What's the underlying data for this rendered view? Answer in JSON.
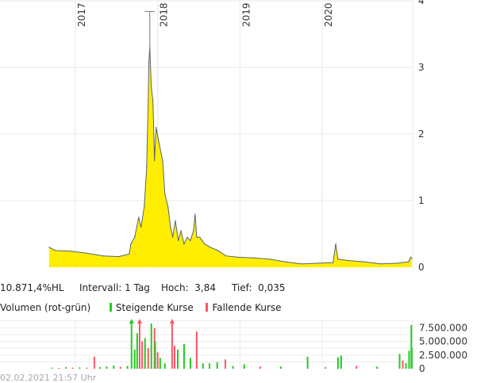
{
  "chart_data": [
    {
      "type": "area",
      "series_color": "#ffee00",
      "line_color": "#5a6470",
      "ylim": [
        0,
        4
      ],
      "y_ticks": [
        "0",
        "1",
        "2",
        "3",
        "4"
      ],
      "x_range": [
        "2016-09-01",
        "2021-02-02"
      ],
      "x_ticks": [
        "2017",
        "2018",
        "2019",
        "2020"
      ],
      "grid": true,
      "high_marker": {
        "date": "2017-11-27",
        "value": 3.84
      },
      "points": [
        [
          "2016-09-06",
          0.3
        ],
        [
          "2016-10-04",
          0.25
        ],
        [
          "2016-12-13",
          0.24
        ],
        [
          "2017-02-22",
          0.21
        ],
        [
          "2017-05-04",
          0.17
        ],
        [
          "2017-07-13",
          0.16
        ],
        [
          "2017-08-28",
          0.2
        ],
        [
          "2017-09-04",
          0.35
        ],
        [
          "2017-09-21",
          0.45
        ],
        [
          "2017-10-09",
          0.75
        ],
        [
          "2017-10-19",
          0.6
        ],
        [
          "2017-11-02",
          0.9
        ],
        [
          "2017-11-13",
          1.5
        ],
        [
          "2017-11-20",
          2.5
        ],
        [
          "2017-11-23",
          3.1
        ],
        [
          "2017-11-27",
          3.3
        ],
        [
          "2017-12-04",
          2.7
        ],
        [
          "2017-12-11",
          2.5
        ],
        [
          "2017-12-18",
          1.6
        ],
        [
          "2017-12-25",
          2.1
        ],
        [
          "2018-01-05",
          1.9
        ],
        [
          "2018-01-23",
          1.6
        ],
        [
          "2018-02-02",
          1.1
        ],
        [
          "2018-02-16",
          0.9
        ],
        [
          "2018-02-27",
          0.6
        ],
        [
          "2018-03-09",
          0.45
        ],
        [
          "2018-03-20",
          0.7
        ],
        [
          "2018-04-03",
          0.4
        ],
        [
          "2018-04-14",
          0.55
        ],
        [
          "2018-04-28",
          0.35
        ],
        [
          "2018-05-12",
          0.45
        ],
        [
          "2018-05-26",
          0.4
        ],
        [
          "2018-06-09",
          0.55
        ],
        [
          "2018-06-16",
          0.8
        ],
        [
          "2018-06-23",
          0.45
        ],
        [
          "2018-07-07",
          0.45
        ],
        [
          "2018-07-28",
          0.35
        ],
        [
          "2018-08-22",
          0.3
        ],
        [
          "2018-09-26",
          0.25
        ],
        [
          "2018-10-31",
          0.17
        ],
        [
          "2018-12-23",
          0.15
        ],
        [
          "2019-03-04",
          0.14
        ],
        [
          "2019-05-14",
          0.12
        ],
        [
          "2019-07-22",
          0.08
        ],
        [
          "2019-09-30",
          0.05
        ],
        [
          "2019-12-10",
          0.06
        ],
        [
          "2020-02-18",
          0.07
        ],
        [
          "2020-03-01",
          0.35
        ],
        [
          "2020-03-11",
          0.12
        ],
        [
          "2020-04-29",
          0.1
        ],
        [
          "2020-07-09",
          0.08
        ],
        [
          "2020-09-17",
          0.05
        ],
        [
          "2020-11-26",
          0.06
        ],
        [
          "2021-01-18",
          0.08
        ],
        [
          "2021-01-29",
          0.15
        ],
        [
          "2021-02-02",
          0.13
        ]
      ]
    },
    {
      "type": "bar",
      "title": "Volumen (rot-grün)",
      "legend": [
        {
          "label": "Steigende Kurse",
          "color": "#22cc22"
        },
        {
          "label": "Fallende Kurse",
          "color": "#ff5566"
        }
      ],
      "ylim": [
        0,
        9000000
      ],
      "y_ticks": [
        "0",
        "2.500.000",
        "5.000.000",
        "7.500.000"
      ],
      "y_tick_values": [
        0,
        2500000,
        5000000,
        7500000
      ],
      "bars": [
        [
          "2016-09-20",
          200000,
          "up"
        ],
        [
          "2016-10-20",
          150000,
          "down"
        ],
        [
          "2016-11-20",
          300000,
          "up"
        ],
        [
          "2016-12-20",
          200000,
          "down"
        ],
        [
          "2017-01-20",
          250000,
          "up"
        ],
        [
          "2017-02-20",
          200000,
          "down"
        ],
        [
          "2017-03-26",
          2200000,
          "down"
        ],
        [
          "2017-04-20",
          300000,
          "up"
        ],
        [
          "2017-05-20",
          400000,
          "up"
        ],
        [
          "2017-06-20",
          600000,
          "up"
        ],
        [
          "2017-07-20",
          350000,
          "down"
        ],
        [
          "2017-08-20",
          500000,
          "up"
        ],
        [
          "2017-09-07",
          9500000,
          "up"
        ],
        [
          "2017-09-21",
          3500000,
          "up"
        ],
        [
          "2017-10-02",
          6500000,
          "up"
        ],
        [
          "2017-10-13",
          9500000,
          "down"
        ],
        [
          "2017-10-24",
          5000000,
          "down"
        ],
        [
          "2017-11-06",
          5600000,
          "up"
        ],
        [
          "2017-11-20",
          3800000,
          "down"
        ],
        [
          "2017-12-04",
          8300000,
          "up"
        ],
        [
          "2017-12-18",
          7400000,
          "down"
        ],
        [
          "2017-12-21",
          5000000,
          "up"
        ],
        [
          "2018-01-01",
          3000000,
          "down"
        ],
        [
          "2018-01-12",
          2000000,
          "up"
        ],
        [
          "2018-02-02",
          1000000,
          "up"
        ],
        [
          "2018-03-06",
          9500000,
          "down"
        ],
        [
          "2018-03-17",
          4200000,
          "down"
        ],
        [
          "2018-03-31",
          3500000,
          "up"
        ],
        [
          "2018-04-28",
          4500000,
          "up"
        ],
        [
          "2018-05-26",
          2000000,
          "up"
        ],
        [
          "2018-06-23",
          6800000,
          "down"
        ],
        [
          "2018-07-21",
          1000000,
          "up"
        ],
        [
          "2018-08-19",
          1000000,
          "up"
        ],
        [
          "2018-09-22",
          1200000,
          "up"
        ],
        [
          "2018-10-28",
          1700000,
          "down"
        ],
        [
          "2018-12-01",
          500000,
          "up"
        ],
        [
          "2019-01-20",
          800000,
          "up"
        ],
        [
          "2019-04-01",
          400000,
          "down"
        ],
        [
          "2019-07-01",
          400000,
          "up"
        ],
        [
          "2019-10-28",
          2200000,
          "up"
        ],
        [
          "2020-01-15",
          300000,
          "down"
        ],
        [
          "2020-03-11",
          2100000,
          "up"
        ],
        [
          "2020-03-25",
          2400000,
          "up"
        ],
        [
          "2020-06-01",
          500000,
          "down"
        ],
        [
          "2020-09-01",
          400000,
          "up"
        ],
        [
          "2020-12-10",
          2700000,
          "up"
        ],
        [
          "2020-12-24",
          1500000,
          "down"
        ],
        [
          "2021-01-07",
          1000000,
          "up"
        ],
        [
          "2021-01-21",
          3300000,
          "up"
        ],
        [
          "2021-01-31",
          8000000,
          "up"
        ],
        [
          "2021-02-02",
          3800000,
          "up"
        ]
      ]
    }
  ],
  "stats": {
    "range_pct": "10.871,4%HL",
    "interval": "Intervall: 1 Tag",
    "high_label": "Hoch:",
    "high_value": "3,84",
    "low_label": "Tief:",
    "low_value": "0,035"
  },
  "timestamp": "02.02.2021 21:57 Uhr"
}
